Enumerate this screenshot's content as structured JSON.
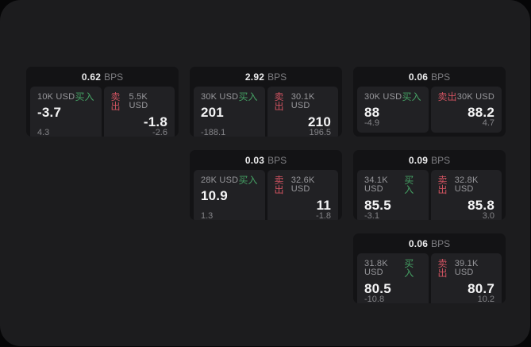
{
  "app": {
    "unit_label": "BPS",
    "buy_label": "买入",
    "sell_label": "卖出"
  },
  "colors": {
    "panel_bg": "#1c1c1e",
    "card_bg": "#131315",
    "tile_bg": "#212124",
    "buy_green": "#45a164",
    "sell_red": "#cf5360"
  },
  "cards": [
    {
      "bps": "0.62",
      "buy": {
        "amount": "10K USD",
        "price": "-3.7",
        "delta": "4.3"
      },
      "sell": {
        "amount": "5.5K USD",
        "price": "-1.8",
        "delta": "-2.6"
      }
    },
    {
      "bps": "2.92",
      "buy": {
        "amount": "30K USD",
        "price": "201",
        "delta": "-188.1"
      },
      "sell": {
        "amount": "30.1K USD",
        "price": "210",
        "delta": "196.5"
      }
    },
    {
      "bps": "0.06",
      "buy": {
        "amount": "30K USD",
        "price": "88",
        "delta": "-4.9"
      },
      "sell": {
        "amount": "30K USD",
        "price": "88.2",
        "delta": "4.7"
      }
    },
    {
      "bps": "0.03",
      "buy": {
        "amount": "28K USD",
        "price": "10.9",
        "delta": "1.3"
      },
      "sell": {
        "amount": "32.6K USD",
        "price": "11",
        "delta": "-1.8"
      }
    },
    {
      "bps": "0.09",
      "buy": {
        "amount": "34.1K USD",
        "price": "85.5",
        "delta": "-3.1"
      },
      "sell": {
        "amount": "32.8K USD",
        "price": "85.8",
        "delta": "3.0"
      }
    },
    {
      "bps": "0.06",
      "buy": {
        "amount": "31.8K USD",
        "price": "80.5",
        "delta": "-10.8"
      },
      "sell": {
        "amount": "39.1K USD",
        "price": "80.7",
        "delta": "10.2"
      }
    }
  ]
}
